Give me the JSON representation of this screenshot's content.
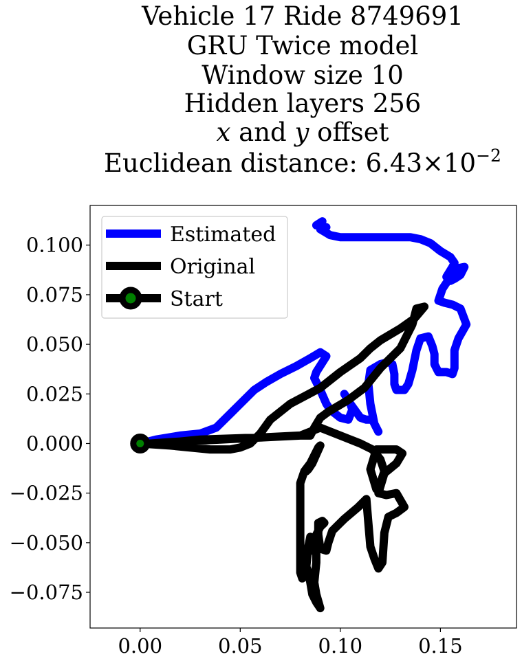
{
  "chart_data": {
    "type": "line",
    "title_lines": [
      "Vehicle 17 Ride 8749691",
      "GRU Twice model",
      "Window size 10",
      "Hidden layers 256"
    ],
    "title_offset_line": {
      "x_var": "x",
      "and": " and ",
      "y_var": "y",
      "rest": " offset"
    },
    "title_distance": {
      "prefix": "Euclidean distance: ",
      "mantissa": "6.43",
      "times": "×",
      "base": "10",
      "exponent": "−2"
    },
    "xlim": [
      -0.025,
      0.188
    ],
    "ylim": [
      -0.093,
      0.12
    ],
    "xticks": [
      {
        "value": 0.0,
        "label": "0.00"
      },
      {
        "value": 0.05,
        "label": "0.05"
      },
      {
        "value": 0.1,
        "label": "0.10"
      },
      {
        "value": 0.15,
        "label": "0.15"
      }
    ],
    "yticks": [
      {
        "value": 0.1,
        "label": "0.100"
      },
      {
        "value": 0.075,
        "label": "0.075"
      },
      {
        "value": 0.05,
        "label": "0.050"
      },
      {
        "value": 0.025,
        "label": "0.025"
      },
      {
        "value": 0.0,
        "label": "0.000"
      },
      {
        "value": -0.025,
        "label": "−0.025"
      },
      {
        "value": -0.05,
        "label": "−0.050"
      },
      {
        "value": -0.075,
        "label": "−0.075"
      }
    ],
    "grid": false,
    "legend_position": "top-left",
    "series": [
      {
        "name": "Estimated",
        "color": "#0000ff",
        "points": [
          [
            0.0,
            0.0
          ],
          [
            0.008,
            0.002
          ],
          [
            0.02,
            0.004
          ],
          [
            0.03,
            0.005
          ],
          [
            0.038,
            0.008
          ],
          [
            0.045,
            0.015
          ],
          [
            0.05,
            0.02
          ],
          [
            0.057,
            0.027
          ],
          [
            0.063,
            0.031
          ],
          [
            0.07,
            0.035
          ],
          [
            0.078,
            0.039
          ],
          [
            0.085,
            0.043
          ],
          [
            0.09,
            0.046
          ],
          [
            0.093,
            0.044
          ],
          [
            0.088,
            0.036
          ],
          [
            0.087,
            0.033
          ],
          [
            0.09,
            0.027
          ],
          [
            0.093,
            0.02
          ],
          [
            0.095,
            0.017
          ],
          [
            0.1,
            0.013
          ],
          [
            0.104,
            0.012
          ],
          [
            0.106,
            0.017
          ],
          [
            0.105,
            0.02
          ],
          [
            0.102,
            0.025
          ],
          [
            0.105,
            0.02
          ],
          [
            0.11,
            0.013
          ],
          [
            0.113,
            0.012
          ],
          [
            0.116,
            0.012
          ],
          [
            0.118,
            0.008
          ],
          [
            0.119,
            0.006
          ],
          [
            0.117,
            0.01
          ],
          [
            0.115,
            0.02
          ],
          [
            0.114,
            0.03
          ],
          [
            0.115,
            0.037
          ],
          [
            0.12,
            0.04
          ],
          [
            0.124,
            0.041
          ],
          [
            0.126,
            0.04
          ],
          [
            0.127,
            0.035
          ],
          [
            0.127,
            0.03
          ],
          [
            0.128,
            0.027
          ],
          [
            0.132,
            0.027
          ],
          [
            0.134,
            0.03
          ],
          [
            0.136,
            0.037
          ],
          [
            0.137,
            0.042
          ],
          [
            0.138,
            0.047
          ],
          [
            0.14,
            0.053
          ],
          [
            0.144,
            0.054
          ],
          [
            0.146,
            0.049
          ],
          [
            0.147,
            0.045
          ],
          [
            0.147,
            0.04
          ],
          [
            0.149,
            0.036
          ],
          [
            0.153,
            0.036
          ],
          [
            0.156,
            0.035
          ],
          [
            0.157,
            0.038
          ],
          [
            0.157,
            0.047
          ],
          [
            0.159,
            0.053
          ],
          [
            0.163,
            0.06
          ],
          [
            0.16,
            0.068
          ],
          [
            0.156,
            0.07
          ],
          [
            0.152,
            0.071
          ],
          [
            0.149,
            0.072
          ],
          [
            0.151,
            0.078
          ],
          [
            0.155,
            0.084
          ],
          [
            0.157,
            0.088
          ],
          [
            0.162,
            0.089
          ],
          [
            0.16,
            0.085
          ],
          [
            0.157,
            0.083
          ],
          [
            0.155,
            0.082
          ],
          [
            0.153,
            0.084
          ],
          [
            0.156,
            0.089
          ],
          [
            0.157,
            0.091
          ],
          [
            0.155,
            0.094
          ],
          [
            0.15,
            0.097
          ],
          [
            0.145,
            0.101
          ],
          [
            0.14,
            0.103
          ],
          [
            0.135,
            0.104
          ],
          [
            0.125,
            0.104
          ],
          [
            0.115,
            0.104
          ],
          [
            0.105,
            0.104
          ],
          [
            0.1,
            0.104
          ],
          [
            0.095,
            0.105
          ],
          [
            0.09,
            0.108
          ],
          [
            0.093,
            0.109
          ],
          [
            0.088,
            0.11
          ],
          [
            0.091,
            0.112
          ]
        ]
      },
      {
        "name": "Original",
        "color": "#000000",
        "points": [
          [
            0.0,
            0.0
          ],
          [
            0.015,
            -0.001
          ],
          [
            0.035,
            -0.003
          ],
          [
            0.045,
            -0.003
          ],
          [
            0.05,
            -0.002
          ],
          [
            0.055,
            0.0
          ],
          [
            0.06,
            0.005
          ],
          [
            0.065,
            0.012
          ],
          [
            0.075,
            0.02
          ],
          [
            0.09,
            0.028
          ],
          [
            0.1,
            0.036
          ],
          [
            0.11,
            0.043
          ],
          [
            0.115,
            0.048
          ],
          [
            0.12,
            0.052
          ],
          [
            0.13,
            0.058
          ],
          [
            0.137,
            0.063
          ],
          [
            0.142,
            0.069
          ],
          [
            0.138,
            0.068
          ],
          [
            0.137,
            0.064
          ],
          [
            0.136,
            0.06
          ],
          [
            0.13,
            0.048
          ],
          [
            0.12,
            0.038
          ],
          [
            0.112,
            0.028
          ],
          [
            0.104,
            0.022
          ],
          [
            0.094,
            0.016
          ],
          [
            0.09,
            0.013
          ],
          [
            0.087,
            0.008
          ],
          [
            0.085,
            0.004
          ],
          [
            0.08,
            0.004
          ],
          [
            0.06,
            0.003
          ],
          [
            0.04,
            0.002
          ],
          [
            0.02,
            0.001
          ],
          [
            0.005,
            0.0
          ],
          [
            0.01,
            0.0
          ],
          [
            0.03,
            0.002
          ],
          [
            0.06,
            0.003
          ],
          [
            0.08,
            0.004
          ],
          [
            0.09,
            0.008
          ],
          [
            0.1,
            0.004
          ],
          [
            0.11,
            0.0
          ],
          [
            0.116,
            -0.003
          ],
          [
            0.12,
            -0.008
          ],
          [
            0.122,
            -0.014
          ],
          [
            0.12,
            -0.02
          ],
          [
            0.118,
            -0.023
          ],
          [
            0.115,
            -0.013
          ],
          [
            0.118,
            -0.003
          ],
          [
            0.128,
            -0.003
          ],
          [
            0.131,
            -0.005
          ],
          [
            0.128,
            -0.01
          ],
          [
            0.122,
            -0.015
          ],
          [
            0.119,
            -0.025
          ],
          [
            0.123,
            -0.026
          ],
          [
            0.128,
            -0.025
          ],
          [
            0.132,
            -0.032
          ],
          [
            0.128,
            -0.035
          ],
          [
            0.124,
            -0.037
          ],
          [
            0.122,
            -0.045
          ],
          [
            0.121,
            -0.06
          ],
          [
            0.119,
            -0.063
          ],
          [
            0.117,
            -0.058
          ],
          [
            0.115,
            -0.052
          ],
          [
            0.114,
            -0.04
          ],
          [
            0.113,
            -0.028
          ],
          [
            0.109,
            -0.032
          ],
          [
            0.102,
            -0.038
          ],
          [
            0.096,
            -0.044
          ],
          [
            0.094,
            -0.05
          ],
          [
            0.093,
            -0.054
          ],
          [
            0.09,
            -0.053
          ],
          [
            0.089,
            -0.046
          ],
          [
            0.089,
            -0.04
          ],
          [
            0.091,
            -0.039
          ],
          [
            0.092,
            -0.04
          ],
          [
            0.09,
            -0.042
          ],
          [
            0.088,
            -0.046
          ],
          [
            0.088,
            -0.052
          ],
          [
            0.088,
            -0.06
          ],
          [
            0.087,
            -0.07
          ],
          [
            0.088,
            -0.076
          ],
          [
            0.09,
            -0.083
          ],
          [
            0.088,
            -0.08
          ],
          [
            0.086,
            -0.076
          ],
          [
            0.085,
            -0.07
          ],
          [
            0.084,
            -0.065
          ],
          [
            0.083,
            -0.062
          ],
          [
            0.084,
            -0.052
          ],
          [
            0.085,
            -0.047
          ],
          [
            0.084,
            -0.055
          ],
          [
            0.082,
            -0.06
          ],
          [
            0.081,
            -0.068
          ],
          [
            0.08,
            -0.065
          ],
          [
            0.08,
            -0.05
          ],
          [
            0.08,
            -0.035
          ],
          [
            0.08,
            -0.02
          ],
          [
            0.082,
            -0.014
          ],
          [
            0.085,
            -0.01
          ],
          [
            0.087,
            -0.006
          ],
          [
            0.088,
            -0.004
          ],
          [
            0.089,
            -0.002
          ],
          [
            0.09,
            -0.001
          ],
          [
            0.086,
            -0.01
          ],
          [
            0.084,
            -0.013
          ],
          [
            0.083,
            -0.014
          ]
        ]
      }
    ],
    "start": {
      "name": "Start",
      "x": 0.0,
      "y": 0.0,
      "marker_color": "#008000",
      "edge_color": "#000000"
    }
  }
}
